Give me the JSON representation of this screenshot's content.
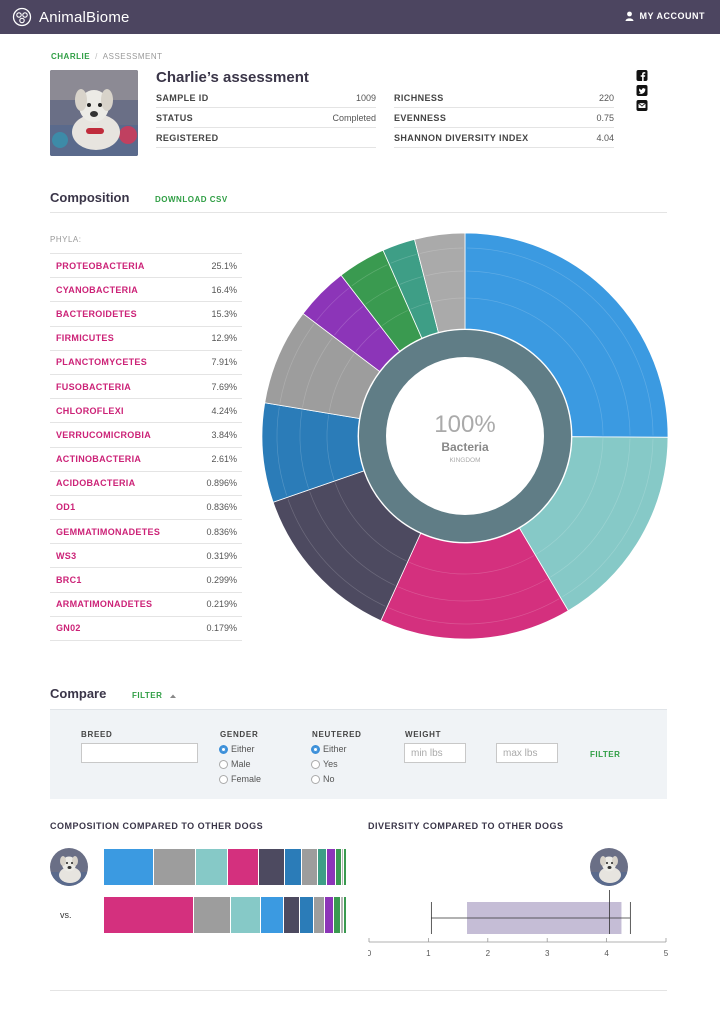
{
  "header": {
    "brand": "AnimalBiome",
    "account": "MY ACCOUNT"
  },
  "breadcrumb": {
    "parent": "CHARLIE",
    "separator": "/",
    "current": "ASSESSMENT"
  },
  "assessment": {
    "title": "Charlie’s assessment",
    "left": [
      {
        "label": "SAMPLE ID",
        "value": "1009"
      },
      {
        "label": "STATUS",
        "value": "Completed"
      },
      {
        "label": "REGISTERED",
        "value": ""
      }
    ],
    "right": [
      {
        "label": "RICHNESS",
        "value": "220"
      },
      {
        "label": "EVENNESS",
        "value": "0.75"
      },
      {
        "label": "SHANNON DIVERSITY INDEX",
        "value": "4.04"
      }
    ]
  },
  "social": [
    "facebook-icon",
    "twitter-icon",
    "email-icon"
  ],
  "composition": {
    "title": "Composition",
    "download": "DOWNLOAD CSV",
    "phyla_label": "PHYLA:",
    "phyla": [
      {
        "name": "PROTEOBACTERIA",
        "value": "25.1%"
      },
      {
        "name": "CYANOBACTERIA",
        "value": "16.4%"
      },
      {
        "name": "BACTEROIDETES",
        "value": "15.3%"
      },
      {
        "name": "FIRMICUTES",
        "value": "12.9%"
      },
      {
        "name": "PLANCTOMYCETES",
        "value": "7.91%"
      },
      {
        "name": "FUSOBACTERIA",
        "value": "7.69%"
      },
      {
        "name": "CHLOROFLEXI",
        "value": "4.24%"
      },
      {
        "name": "VERRUCOMICROBIA",
        "value": "3.84%"
      },
      {
        "name": "ACTINOBACTERIA",
        "value": "2.61%"
      },
      {
        "name": "ACIDOBACTERIA",
        "value": "0.896%"
      },
      {
        "name": "OD1",
        "value": "0.836%"
      },
      {
        "name": "GEMMATIMONADETES",
        "value": "0.836%"
      },
      {
        "name": "WS3",
        "value": "0.319%"
      },
      {
        "name": "BRC1",
        "value": "0.299%"
      },
      {
        "name": "ARMATIMONADETES",
        "value": "0.219%"
      },
      {
        "name": "GN02",
        "value": "0.179%"
      }
    ],
    "center": {
      "percent": "100%",
      "name": "Bacteria",
      "rank": "KINGDOM"
    },
    "ring_colors": {
      "inner": "#607d86",
      "hole": "#ffffff",
      "divider": "#ffffff"
    }
  },
  "chart_data": [
    {
      "type": "pie",
      "variant": "sunburst",
      "center_label": "100%",
      "series": [
        {
          "color": "#3b9ae1",
          "value": 25.1
        },
        {
          "color": "#86c9c7",
          "value": 16.4
        },
        {
          "color": "#d4307e",
          "value": 15.3
        },
        {
          "color": "#4d4a60",
          "value": 12.9
        },
        {
          "color": "#2b7cb8",
          "value": 7.91
        },
        {
          "color": "#9d9d9d",
          "value": 7.69
        },
        {
          "color": "#8c35b8",
          "value": 4.24
        },
        {
          "color": "#3a9a50",
          "value": 3.84
        },
        {
          "color": "#3e9e86",
          "value": 2.61
        },
        {
          "color": "#aaaaaa",
          "value": 4.0
        }
      ]
    },
    {
      "type": "bar",
      "variant": "stacked-horizontal",
      "title": "COMPOSITION COMPARED TO OTHER DOGS",
      "series": [
        {
          "segments": [
            {
              "color": "#3b9ae1",
              "value": 25.1
            },
            {
              "color": "#9d9d9d",
              "value": 21
            },
            {
              "color": "#86c9c7",
              "value": 16
            },
            {
              "color": "#d4307e",
              "value": 15.3
            },
            {
              "color": "#4d4a60",
              "value": 12.9
            },
            {
              "color": "#2b7cb8",
              "value": 7.9
            },
            {
              "color": "#9d9d9d",
              "value": 7.7
            },
            {
              "color": "#3e9e86",
              "value": 4.2
            },
            {
              "color": "#8c35b8",
              "value": 3.8
            },
            {
              "color": "#3a9a50",
              "value": 2.6
            },
            {
              "color": "#b6b6b6",
              "value": 0.9
            },
            {
              "color": "#3a9a50",
              "value": 0.8
            }
          ]
        },
        {
          "segments": [
            {
              "color": "#d4307e",
              "value": 37
            },
            {
              "color": "#9d9d9d",
              "value": 15
            },
            {
              "color": "#86c9c7",
              "value": 12
            },
            {
              "color": "#3b9ae1",
              "value": 9
            },
            {
              "color": "#4d4a60",
              "value": 6.5
            },
            {
              "color": "#2b7cb8",
              "value": 5.2
            },
            {
              "color": "#9d9d9d",
              "value": 4.5
            },
            {
              "color": "#8c35b8",
              "value": 3
            },
            {
              "color": "#3a9a50",
              "value": 2.5
            },
            {
              "color": "#b6b6b6",
              "value": 1
            },
            {
              "color": "#3a9a50",
              "value": 0.8
            }
          ]
        }
      ]
    },
    {
      "type": "box",
      "title": "DIVERSITY COMPARED TO OTHER DOGS",
      "x_ticks": [
        "0",
        "1",
        "2",
        "3",
        "4",
        "5"
      ],
      "xlim": [
        0,
        5
      ],
      "whisker_low": 1.05,
      "q1": 1.65,
      "q3": 4.25,
      "whisker_high": 4.4,
      "median": 4.05,
      "marker": 4.04,
      "box_color": "#c5bdd6"
    }
  ],
  "compare": {
    "title": "Compare",
    "filter_toggle": "FILTER",
    "breed_label": "BREED",
    "breed_value": "",
    "gender_label": "GENDER",
    "gender_options": [
      "Either",
      "Male",
      "Female"
    ],
    "neutered_label": "NEUTERED",
    "neutered_options": [
      "Either",
      "Yes",
      "No"
    ],
    "weight_label": "WEIGHT",
    "min_placeholder": "min lbs",
    "max_placeholder": "max lbs",
    "filter_button": "FILTER",
    "vs": "vs."
  }
}
